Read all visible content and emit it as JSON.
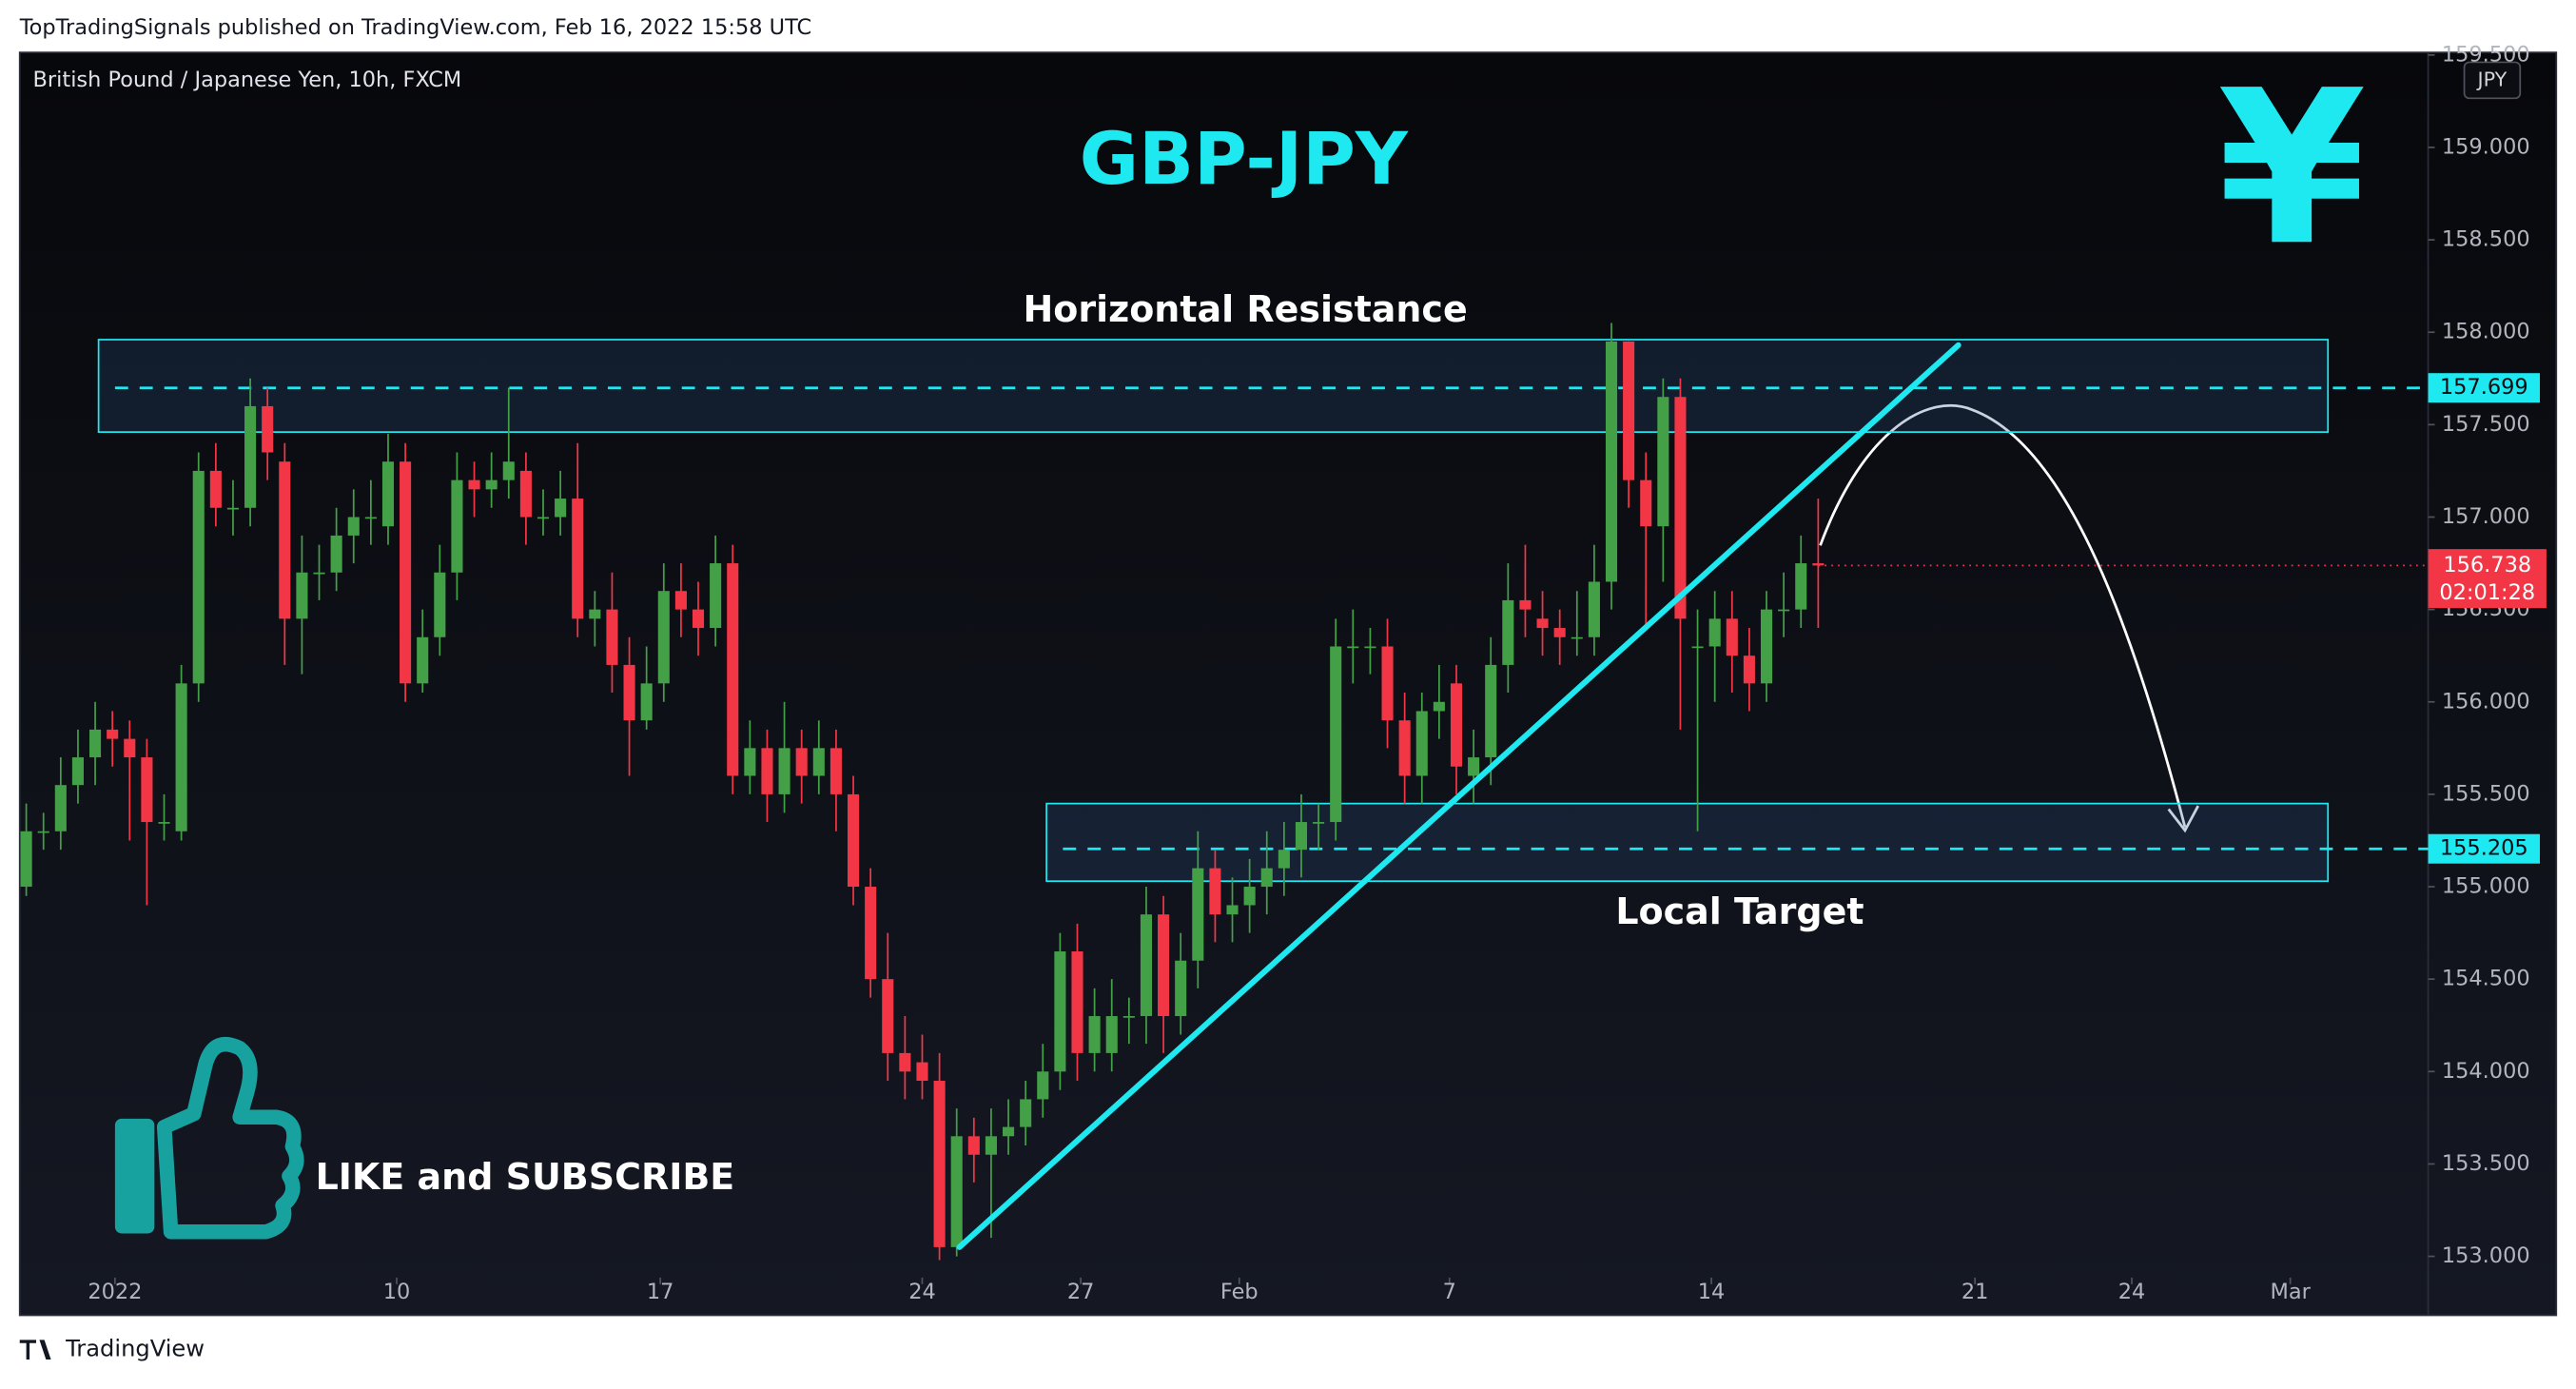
{
  "header": {
    "published": "TopTradingSignals published on TradingView.com, Feb 16, 2022 15:58 UTC",
    "brand": "TradingView"
  },
  "chart_data": {
    "type": "candlestick",
    "symbol": "British Pound / Japanese Yen, 10h, FXCM",
    "currency": "JPY",
    "title": "GBP-JPY",
    "yen_icon": "¥",
    "call_to_action": "LIKE and SUBSCRIBE",
    "up_color": "#43a047",
    "down_color": "#f23645",
    "accent_color": "#1ee8f0",
    "grid": false,
    "open": [
      155.0,
      155.3,
      155.3,
      155.55,
      155.7,
      155.85,
      155.8,
      155.7,
      155.35,
      155.3,
      156.1,
      157.25,
      157.05,
      157.05,
      157.6,
      157.3,
      156.45,
      156.7,
      156.7,
      156.9,
      157.0,
      156.95,
      157.3,
      156.1,
      156.35,
      156.7,
      157.2,
      157.15,
      157.2,
      157.25,
      157.0,
      157.0,
      157.1,
      156.45,
      156.5,
      156.2,
      155.9,
      156.1,
      156.6,
      156.5,
      156.4,
      156.75,
      155.6,
      155.75,
      155.5,
      155.75,
      155.6,
      155.75,
      155.5,
      155.0,
      154.5,
      154.1,
      154.05,
      153.95,
      153.05,
      153.65,
      153.55,
      153.65,
      153.7,
      153.85,
      154.0,
      154.65,
      154.1,
      154.1,
      154.3,
      154.3,
      154.85,
      154.3,
      154.6,
      155.1,
      154.85,
      154.9,
      155.0,
      155.1,
      155.2,
      155.35,
      155.35,
      156.3,
      156.3,
      156.3,
      155.9,
      155.6,
      155.95,
      156.1,
      155.6,
      155.7,
      156.2,
      156.55,
      156.45,
      156.4,
      156.35,
      156.35,
      156.65,
      157.95,
      157.2,
      156.95,
      157.65,
      156.3,
      156.3,
      156.45,
      156.25,
      156.1,
      156.5,
      156.5,
      156.75
    ],
    "high": [
      155.45,
      155.4,
      155.7,
      155.85,
      156.0,
      155.95,
      155.9,
      155.8,
      155.5,
      156.2,
      157.35,
      157.4,
      157.2,
      157.75,
      157.7,
      157.4,
      156.9,
      156.85,
      157.05,
      157.15,
      157.2,
      157.45,
      157.4,
      156.5,
      156.85,
      157.35,
      157.3,
      157.35,
      157.7,
      157.35,
      157.15,
      157.25,
      157.4,
      156.6,
      156.7,
      156.35,
      156.3,
      156.75,
      156.75,
      156.65,
      156.9,
      156.85,
      155.9,
      155.85,
      156.0,
      155.85,
      155.9,
      155.85,
      155.6,
      155.1,
      154.75,
      154.3,
      154.2,
      154.1,
      153.8,
      153.75,
      153.8,
      153.85,
      153.95,
      154.15,
      154.75,
      154.8,
      154.45,
      154.5,
      154.4,
      155.0,
      154.95,
      154.75,
      155.3,
      155.2,
      155.05,
      155.15,
      155.3,
      155.35,
      155.5,
      155.45,
      156.45,
      156.5,
      156.4,
      156.45,
      156.05,
      156.05,
      156.2,
      156.2,
      155.85,
      156.35,
      156.75,
      156.85,
      156.6,
      156.5,
      156.6,
      156.85,
      158.05,
      157.95,
      157.35,
      157.75,
      157.75,
      156.5,
      156.6,
      156.6,
      156.4,
      156.6,
      156.7,
      156.9,
      157.1
    ],
    "low": [
      154.95,
      155.2,
      155.2,
      155.45,
      155.55,
      155.65,
      155.25,
      154.9,
      155.25,
      155.25,
      156.0,
      156.95,
      156.9,
      156.95,
      157.2,
      156.2,
      156.15,
      156.55,
      156.6,
      156.75,
      156.85,
      156.85,
      156.0,
      156.05,
      156.25,
      156.55,
      157.0,
      157.05,
      157.1,
      156.85,
      156.9,
      156.9,
      156.35,
      156.3,
      156.05,
      155.6,
      155.85,
      156.0,
      156.35,
      156.25,
      156.3,
      155.5,
      155.5,
      155.35,
      155.4,
      155.45,
      155.5,
      155.3,
      154.9,
      154.4,
      153.95,
      153.85,
      153.85,
      152.98,
      153.0,
      153.4,
      153.1,
      153.55,
      153.6,
      153.75,
      153.9,
      153.95,
      154.0,
      154.0,
      154.15,
      154.15,
      154.1,
      154.2,
      154.45,
      154.7,
      154.7,
      154.75,
      154.85,
      154.95,
      155.05,
      155.2,
      155.25,
      156.1,
      156.15,
      155.75,
      155.45,
      155.45,
      155.8,
      155.5,
      155.45,
      155.55,
      156.05,
      156.35,
      156.25,
      156.2,
      156.25,
      156.25,
      156.5,
      157.05,
      156.4,
      156.65,
      155.85,
      155.3,
      156.0,
      156.05,
      155.95,
      156.0,
      156.35,
      156.4,
      156.4
    ],
    "close": [
      155.3,
      155.3,
      155.55,
      155.7,
      155.85,
      155.8,
      155.7,
      155.35,
      155.35,
      156.1,
      157.25,
      157.05,
      157.05,
      157.6,
      157.35,
      156.45,
      156.7,
      156.7,
      156.9,
      157.0,
      157.0,
      157.3,
      156.1,
      156.35,
      156.7,
      157.2,
      157.15,
      157.2,
      157.3,
      157.0,
      157.0,
      157.1,
      156.45,
      156.5,
      156.2,
      155.9,
      156.1,
      156.6,
      156.5,
      156.4,
      156.75,
      155.6,
      155.75,
      155.5,
      155.75,
      155.6,
      155.75,
      155.5,
      155.0,
      154.5,
      154.1,
      154.0,
      153.95,
      153.05,
      153.65,
      153.55,
      153.65,
      153.7,
      153.85,
      154.0,
      154.65,
      154.1,
      154.3,
      154.3,
      154.3,
      154.85,
      154.3,
      154.6,
      155.1,
      154.85,
      154.9,
      155.0,
      155.1,
      155.2,
      155.35,
      155.35,
      156.3,
      156.3,
      156.3,
      155.9,
      155.6,
      155.95,
      156.0,
      155.65,
      155.7,
      156.2,
      156.55,
      156.5,
      156.4,
      156.35,
      156.35,
      156.65,
      157.95,
      157.2,
      156.95,
      157.65,
      156.45,
      156.3,
      156.45,
      156.25,
      156.1,
      156.5,
      156.5,
      156.75,
      156.738
    ],
    "xlim": [
      -0.38,
      139.4
    ],
    "xticks": [
      {
        "value": 5.15,
        "label": "2022"
      },
      {
        "value": 21.5,
        "label": "10"
      },
      {
        "value": 36.8,
        "label": "17"
      },
      {
        "value": 52.0,
        "label": "24"
      },
      {
        "value": 61.2,
        "label": "27"
      },
      {
        "value": 70.4,
        "label": "Feb"
      },
      {
        "value": 82.6,
        "label": "7"
      },
      {
        "value": 97.8,
        "label": "14"
      },
      {
        "value": 113.1,
        "label": "21"
      },
      {
        "value": 122.2,
        "label": "24"
      },
      {
        "value": 131.4,
        "label": "Mar"
      }
    ],
    "ylim": [
      152.885,
      159.514
    ],
    "yticks": [
      {
        "value": 153,
        "label": "153.000"
      },
      {
        "value": 153.5,
        "label": "153.500"
      },
      {
        "value": 154,
        "label": "154.000"
      },
      {
        "value": 154.5,
        "label": "154.500"
      },
      {
        "value": 155,
        "label": "155.000"
      },
      {
        "value": 155.5,
        "label": "155.500"
      },
      {
        "value": 156,
        "label": "156.000"
      },
      {
        "value": 156.5,
        "label": "156.500"
      },
      {
        "value": 157,
        "label": "157.000"
      },
      {
        "value": 157.5,
        "label": "157.500"
      },
      {
        "value": 158,
        "label": "158.000"
      },
      {
        "value": 158.5,
        "label": "158.500"
      },
      {
        "value": 159,
        "label": "159.000"
      },
      {
        "value": 159.5,
        "label": "159.500"
      }
    ],
    "zones": [
      {
        "label": "Horizontal Resistance",
        "ylim": [
          157.46,
          157.96
        ],
        "level": 157.699
      },
      {
        "label": "Local Target",
        "ylim": [
          155.03,
          155.45
        ],
        "level": 155.205
      }
    ],
    "trendline": [
      153.05,
      157.93
    ],
    "last_price": 156.738,
    "countdown": "02:01:28"
  }
}
